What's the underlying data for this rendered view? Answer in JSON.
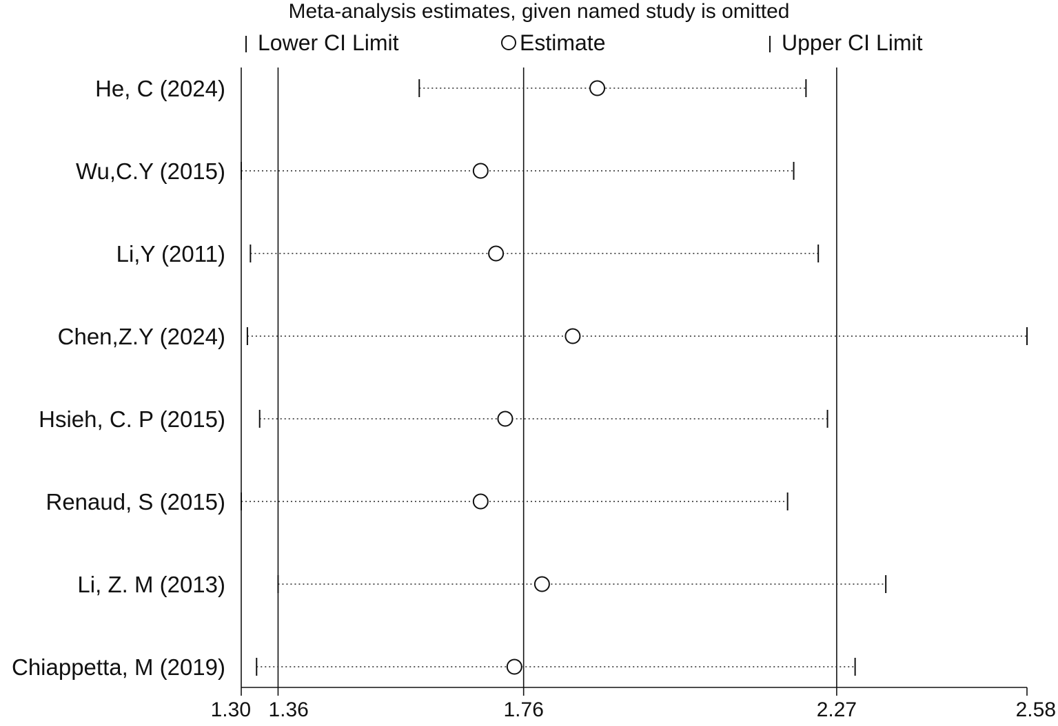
{
  "chart_data": {
    "type": "forest",
    "title": "Meta-analysis estimates, given named study is omitted",
    "legend": {
      "lower": "Lower CI Limit",
      "estimate": "Estimate",
      "upper": "Upper CI Limit"
    },
    "x_ticks": [
      {
        "value": 1.3,
        "label": "1.30"
      },
      {
        "value": 1.36,
        "label": "1.36"
      },
      {
        "value": 1.76,
        "label": "1.76"
      },
      {
        "value": 2.27,
        "label": "2.27"
      },
      {
        "value": 2.58,
        "label": "2.58"
      }
    ],
    "reference_lines": [
      1.36,
      1.76,
      2.27
    ],
    "xlim": [
      1.3,
      2.58
    ],
    "studies": [
      {
        "label": "He, C (2024)",
        "lower": 1.59,
        "estimate": 1.88,
        "upper": 2.22
      },
      {
        "label": "Wu,C.Y (2015)",
        "lower": 1.3,
        "estimate": 1.69,
        "upper": 2.2
      },
      {
        "label": "Li,Y (2011)",
        "lower": 1.315,
        "estimate": 1.715,
        "upper": 2.24
      },
      {
        "label": "Chen,Z.Y (2024)",
        "lower": 1.31,
        "estimate": 1.84,
        "upper": 2.58
      },
      {
        "label": "Hsieh, C. P (2015)",
        "lower": 1.33,
        "estimate": 1.73,
        "upper": 2.255
      },
      {
        "label": "Renaud, S (2015)",
        "lower": 1.3,
        "estimate": 1.69,
        "upper": 2.19
      },
      {
        "label": "Li, Z. M (2013)",
        "lower": 1.36,
        "estimate": 1.79,
        "upper": 2.35
      },
      {
        "label": "Chiappetta, M (2019)",
        "lower": 1.325,
        "estimate": 1.745,
        "upper": 2.3
      }
    ]
  }
}
